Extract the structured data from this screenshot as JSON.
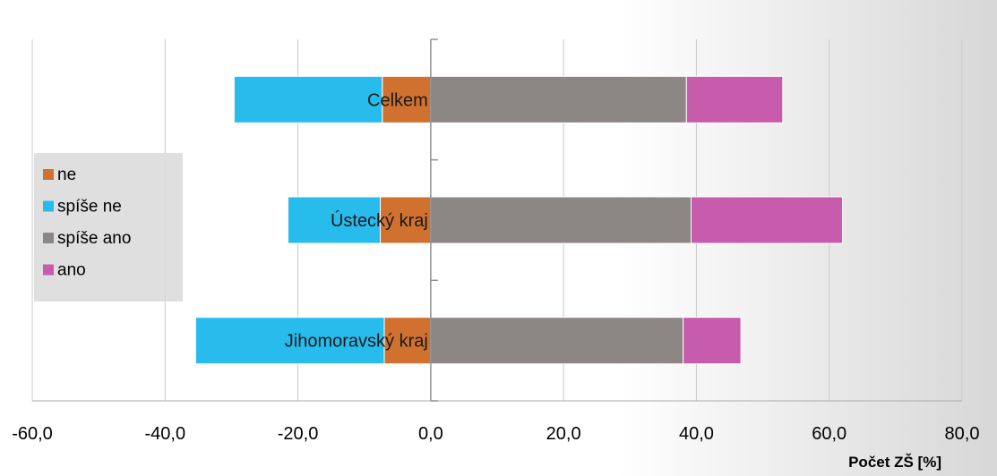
{
  "chart_data": {
    "type": "bar",
    "orientation": "horizontal",
    "stacked": "diverging",
    "categories": [
      "Celkem",
      "Ústecký kraj",
      "Jihomoravský kraj"
    ],
    "series": [
      {
        "name": "ne",
        "color": "#d0712f",
        "values": [
          -7.3,
          -7.6,
          -7.0
        ]
      },
      {
        "name": "spíše ne",
        "color": "#27bcec",
        "values": [
          -22.3,
          -13.9,
          -28.4
        ]
      },
      {
        "name": "spíše ano",
        "color": "#8c8685",
        "values": [
          38.5,
          39.2,
          38.0
        ]
      },
      {
        "name": "ano",
        "color": "#c75cac",
        "values": [
          14.5,
          22.8,
          8.7
        ]
      }
    ],
    "xlim": [
      -60,
      80
    ],
    "x_ticks": [
      "-60,0",
      "-40,0",
      "-20,0",
      "0,0",
      "20,0",
      "40,0",
      "60,0",
      "80,0"
    ],
    "xlabel": "Počet ZŠ [%]",
    "ylabel": "",
    "title": "",
    "grid": true,
    "legend_position": "left"
  }
}
